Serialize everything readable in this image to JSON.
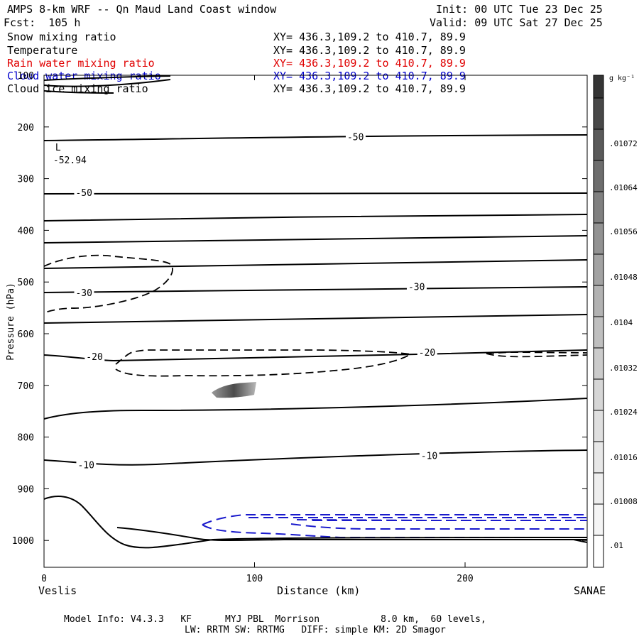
{
  "header": {
    "title": "AMPS 8-km WRF -- Qn Maud Land Coast window",
    "init": "Init: 00 UTC Tue 23 Dec 25",
    "forecast": "Fcst:  105 h",
    "valid": "Valid: 09 UTC Sat 27 Dec 25"
  },
  "fields": [
    {
      "name": "Snow mixing ratio",
      "xy": "XY= 436.3,109.2 to 410.7, 89.9",
      "color": "#000000"
    },
    {
      "name": "Temperature",
      "xy": "XY= 436.3,109.2 to 410.7, 89.9",
      "color": "#000000"
    },
    {
      "name": "Rain water mixing ratio",
      "xy": "XY= 436.3,109.2 to 410.7, 89.9",
      "color": "#e00000"
    },
    {
      "name": "Cloud water mixing ratio",
      "xy": "XY= 436.3,109.2 to 410.7, 89.9",
      "color": "#0000cc"
    },
    {
      "name": "Cloud ice mixing ratio",
      "xy": "XY= 436.3,109.2 to 410.7, 89.9",
      "color": "#000000"
    }
  ],
  "chart_data": {
    "type": "cross-section contour",
    "ylabel": "Pressure (hPa)",
    "xlabel": "Distance (km)",
    "xlim": [
      0,
      258
    ],
    "ylim": [
      1050,
      100
    ],
    "x_ticks": [
      "0",
      "100",
      "200"
    ],
    "y_ticks": [
      "100",
      "200",
      "300",
      "400",
      "500",
      "600",
      "700",
      "800",
      "900",
      "1000"
    ],
    "x_left_label": "Veslis",
    "x_right_label": "SANAE",
    "temperature_contour_labels": [
      {
        "text": "-50",
        "x": 144,
        "p": 220
      },
      {
        "text": "-50",
        "x": 15,
        "p": 328
      },
      {
        "text": "-30",
        "x": 15,
        "p": 522
      },
      {
        "text": "-30",
        "x": 173,
        "p": 510
      },
      {
        "text": "-20",
        "x": 20,
        "p": 645
      },
      {
        "text": "-20",
        "x": 178,
        "p": 637
      },
      {
        "text": "-10",
        "x": 16,
        "p": 855
      },
      {
        "text": "-10",
        "x": 179,
        "p": 837
      }
    ],
    "low_marker": {
      "symbol": "L",
      "value": "-52.94",
      "x": 3,
      "p": 270
    },
    "colorbar": {
      "unit": "g kg⁻¹",
      "labels": [
        ".01072",
        ".01064",
        ".01056",
        ".01048",
        ".0104",
        ".01032",
        ".01024",
        ".01016",
        ".01008",
        ".01"
      ]
    }
  },
  "footer": {
    "line1": "Model Info: V4.3.3   KF      MYJ PBL  Morrison           8.0 km,  60 levels,",
    "line2": "LW: RRTM SW: RRTMG   DIFF: simple KM: 2D Smagor"
  }
}
